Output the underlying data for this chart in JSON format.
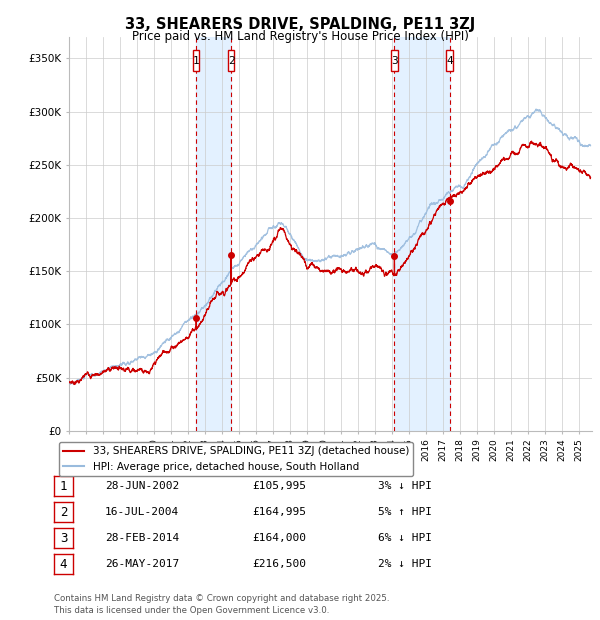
{
  "title": "33, SHEARERS DRIVE, SPALDING, PE11 3ZJ",
  "subtitle": "Price paid vs. HM Land Registry's House Price Index (HPI)",
  "line_color_price": "#cc0000",
  "line_color_hpi": "#99bbdd",
  "legend_label_price": "33, SHEARERS DRIVE, SPALDING, PE11 3ZJ (detached house)",
  "legend_label_hpi": "HPI: Average price, detached house, South Holland",
  "transactions": [
    {
      "num": 1,
      "date": "28-JUN-2002",
      "price": "£105,995",
      "x": 2002.49,
      "pct": "3%",
      "dir": "↓"
    },
    {
      "num": 2,
      "date": "16-JUL-2004",
      "price": "£164,995",
      "x": 2004.54,
      "pct": "5%",
      "dir": "↑"
    },
    {
      "num": 3,
      "date": "28-FEB-2014",
      "price": "£164,000",
      "x": 2014.16,
      "pct": "6%",
      "dir": "↓"
    },
    {
      "num": 4,
      "date": "26-MAY-2017",
      "price": "£216,500",
      "x": 2017.4,
      "pct": "2%",
      "dir": "↓"
    }
  ],
  "footer": "Contains HM Land Registry data © Crown copyright and database right 2025.\nThis data is licensed under the Open Government Licence v3.0.",
  "background_color": "#ffffff",
  "grid_color": "#cccccc",
  "shaded_region_color": "#ddeeff",
  "yticks": [
    0,
    50000,
    100000,
    150000,
    200000,
    250000,
    300000,
    350000
  ],
  "ytick_labels": [
    "£0",
    "£50K",
    "£100K",
    "£150K",
    "£200K",
    "£250K",
    "£300K",
    "£350K"
  ],
  "ylim": [
    0,
    370000
  ],
  "xlim": [
    1995,
    2025.8
  ]
}
